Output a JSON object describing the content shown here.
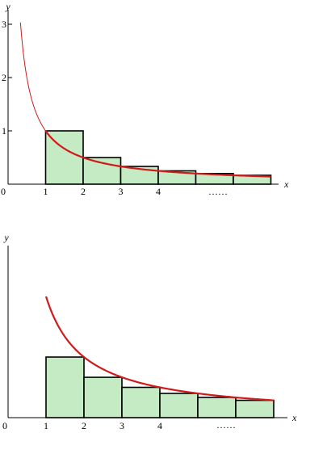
{
  "colors": {
    "bar_fill": "#c4ebc4",
    "curve": "#d11a1a",
    "axis": "#000000"
  },
  "chart_data": [
    {
      "type": "bar",
      "description_function": "y = 1/x",
      "xlabel": "x",
      "ylabel": "y",
      "xlim": [
        0,
        7.3
      ],
      "ylim": [
        0,
        3.1
      ],
      "x_tick_labels": [
        "1",
        "2",
        "3",
        "4"
      ],
      "y_tick_labels": [
        "0",
        "1",
        "2",
        "3"
      ],
      "x_origin_label": "0",
      "ellipsis": "……",
      "bars": [
        {
          "x0": 1,
          "x1": 2,
          "value": 1.0
        },
        {
          "x0": 2,
          "x1": 3,
          "value": 0.5
        },
        {
          "x0": 3,
          "x1": 4,
          "value": 0.333
        },
        {
          "x0": 4,
          "x1": 5,
          "value": 0.25
        },
        {
          "x0": 5,
          "x1": 6,
          "value": 0.2
        },
        {
          "x0": 6,
          "x1": 7,
          "value": 0.167
        }
      ],
      "curve": {
        "x_start": 0.33,
        "x_end": 7,
        "thin_until": 1
      }
    },
    {
      "type": "bar",
      "description_function": "y = 1/x (bars at right endpoint)",
      "xlabel": "x",
      "ylabel": "y",
      "xlim": [
        0,
        7.3
      ],
      "ylim": [
        0,
        1.3
      ],
      "x_tick_labels": [
        "1",
        "2",
        "3",
        "4"
      ],
      "y_tick_labels": [],
      "x_origin_label": "0",
      "ellipsis": "……",
      "bars": [
        {
          "x0": 1,
          "x1": 2,
          "value": 0.5
        },
        {
          "x0": 2,
          "x1": 3,
          "value": 0.333
        },
        {
          "x0": 3,
          "x1": 4,
          "value": 0.25
        },
        {
          "x0": 4,
          "x1": 5,
          "value": 0.2
        },
        {
          "x0": 5,
          "x1": 6,
          "value": 0.167
        },
        {
          "x0": 6,
          "x1": 7,
          "value": 0.143
        }
      ],
      "curve": {
        "x_start": 1,
        "x_end": 7,
        "thin_until": 1
      }
    }
  ]
}
